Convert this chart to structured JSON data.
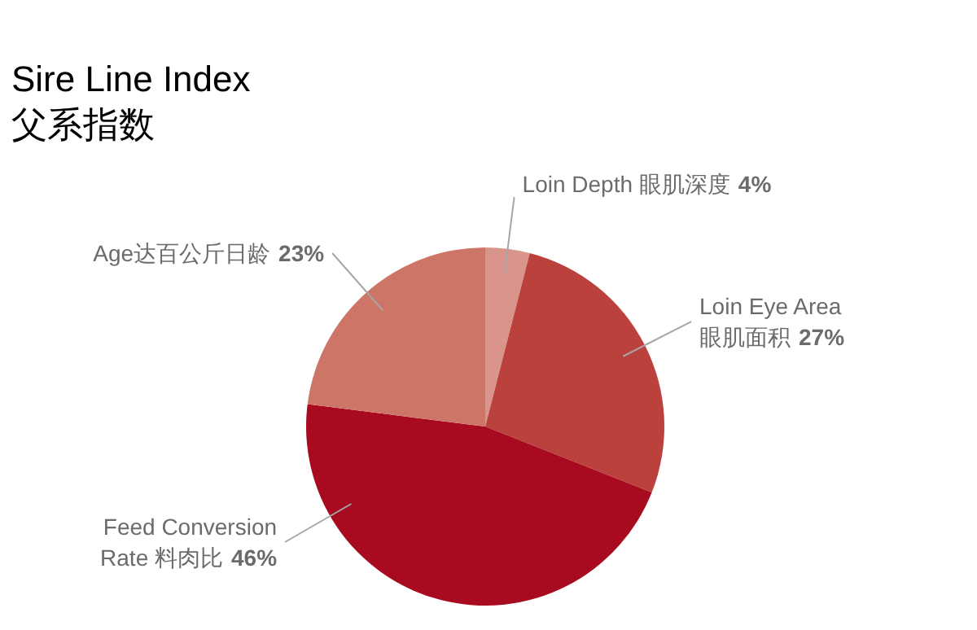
{
  "chart_data": {
    "type": "pie",
    "title": "Sire Line Index",
    "subtitle": "父系指数",
    "categories": [
      "Loin Depth 眼肌深度",
      "Loin Eye Area 眼肌面积",
      "Feed Conversion Rate 料肉比",
      "Age达百公斤日龄"
    ],
    "values": [
      4,
      27,
      46,
      23
    ],
    "colors": [
      "#d9958c",
      "#bb413d",
      "#a80b20",
      "#cd7566"
    ],
    "value_labels": [
      "4%",
      "27%",
      "46%",
      "23%"
    ]
  }
}
